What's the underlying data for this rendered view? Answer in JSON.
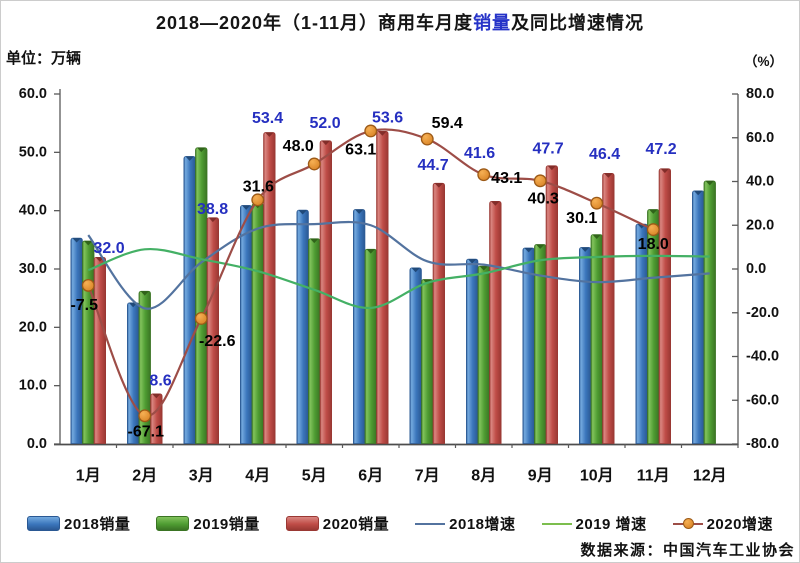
{
  "title": {
    "prefix": "2018—2020年（1-11月）商用车月度",
    "highlight": "销量",
    "suffix": "及同比增速情况"
  },
  "axes": {
    "left_unit": "单位：万辆",
    "right_unit": "（%）",
    "left_ticks": [
      "60.0",
      "50.0",
      "40.0",
      "30.0",
      "20.0",
      "10.0",
      "0.0"
    ],
    "right_ticks": [
      "80.0",
      "60.0",
      "40.0",
      "20.0",
      "0.0",
      "-20.0",
      "-40.0",
      "-60.0",
      "-80.0"
    ]
  },
  "source": "数据来源：中国汽车工业协会",
  "chart_data": {
    "type": "bar+line combo",
    "categories": [
      "1月",
      "2月",
      "3月",
      "4月",
      "5月",
      "6月",
      "7月",
      "8月",
      "9月",
      "10月",
      "11月",
      "12月"
    ],
    "ylim_left": [
      0,
      60
    ],
    "ylim_right": [
      -80,
      80
    ],
    "grid": false,
    "legend_position": "bottom",
    "bar_series": [
      {
        "name": "2018销量",
        "color": "#3B76BC",
        "edge": "#2A5893",
        "light": "#74AADF",
        "notch": "#1F4775",
        "values": [
          35.3,
          24.2,
          49.3,
          40.9,
          40.1,
          40.2,
          30.2,
          31.7,
          33.6,
          33.7,
          37.7,
          43.4
        ]
      },
      {
        "name": "2019销量",
        "color": "#4E9C32",
        "edge": "#3A7423",
        "light": "#82C35C",
        "notch": "#2E6018",
        "values": [
          34.8,
          26.2,
          50.8,
          41.2,
          35.2,
          33.4,
          28.2,
          30.5,
          34.2,
          35.9,
          40.2,
          45.1
        ]
      },
      {
        "name": "2020销量",
        "color": "#BF4C47",
        "edge": "#9A3833",
        "light": "#DA8681",
        "notch": "#7E2B27",
        "values": [
          32.0,
          8.6,
          38.8,
          53.4,
          52.0,
          53.6,
          44.7,
          41.6,
          47.7,
          46.4,
          47.2,
          null
        ],
        "labels": [
          "32.0",
          "8.6",
          "38.8",
          "53.4",
          "52.0",
          "53.6",
          "44.7",
          "41.6",
          "47.7",
          "46.4",
          "47.2",
          null
        ]
      }
    ],
    "line_series": [
      {
        "name": "2018增速",
        "color": "#53739F",
        "values": [
          15.5,
          -18,
          3,
          18.5,
          20.5,
          20,
          3.5,
          2,
          -3,
          -6,
          -4,
          -2
        ]
      },
      {
        "name": "2019增速",
        "color": "#44B065",
        "values": [
          -0.5,
          9,
          4.5,
          -1,
          -9.5,
          -17.8,
          -6.3,
          -2,
          4,
          5.5,
          6,
          5.7
        ]
      },
      {
        "name": "2020增速",
        "color": "#9D4D47",
        "marker_fill": "#E8922F",
        "marker_edge": "#9C5A17",
        "values": [
          -7.5,
          -67.1,
          -22.6,
          31.6,
          48.0,
          63.1,
          59.4,
          43.1,
          40.3,
          30.1,
          18.0,
          null
        ],
        "labels": [
          "-7.5",
          "-67.1",
          "-22.6",
          "31.6",
          "48.0",
          "63.1",
          "59.4",
          "43.1",
          "40.3",
          "30.1",
          "18.0",
          null
        ]
      }
    ],
    "bar_label_color": "#252FC0",
    "line_label_color": "#000000"
  },
  "legend": {
    "items": [
      {
        "label": "2018销量",
        "type": "bar",
        "color": "#3B76BC"
      },
      {
        "label": "2019销量",
        "type": "bar",
        "color": "#4E9C32"
      },
      {
        "label": "2020销量",
        "type": "bar",
        "color": "#BF4C47"
      },
      {
        "label": "2018增速",
        "type": "line",
        "color": "#53739F"
      },
      {
        "label": "2019 增速",
        "type": "line",
        "color": "#7CBE4E"
      },
      {
        "label": "2020增速",
        "type": "line-marker",
        "color": "#9D4D47",
        "marker": "#E8922F"
      }
    ]
  }
}
